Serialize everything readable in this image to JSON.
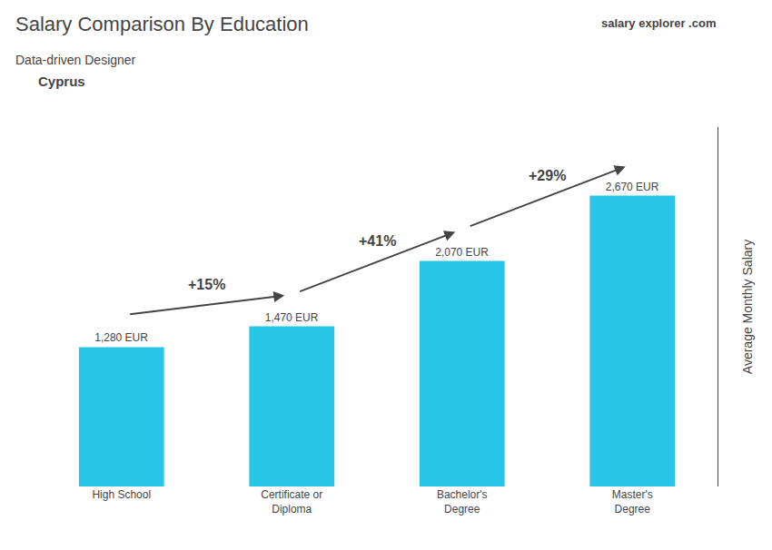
{
  "chart_data": {
    "type": "bar",
    "title": "Salary Comparison By Education",
    "subtitle": "Data-driven Designer",
    "categories": [
      "High School",
      "Certificate or\nDiploma",
      "Bachelor's\nDegree",
      "Master's\nDegree"
    ],
    "values": [
      1280,
      1470,
      2070,
      2670
    ],
    "value_labels": [
      "1,280 EUR",
      "1,470 EUR",
      "2,070 EUR",
      "2,670 EUR"
    ],
    "data_labels": true,
    "color": "#29c5e6",
    "ylabel": "Average Monthly Salary",
    "ylim": [
      0,
      3300
    ],
    "tick_labels": "x",
    "grid": false,
    "annotations": [
      {
        "text": "Cyprus"
      },
      {
        "text": "salary"
      },
      {
        "text": "explorer"
      },
      {
        "text": ".com"
      },
      {
        "text": "+15%",
        "from": "High School",
        "to": "Certificate or\nDiploma"
      },
      {
        "text": "+41%",
        "from": "Certificate or\nDiploma",
        "to": "Bachelor's\nDegree"
      },
      {
        "text": "+29%",
        "from": "Bachelor's\nDegree",
        "to": "Master's\nDegree"
      }
    ]
  }
}
